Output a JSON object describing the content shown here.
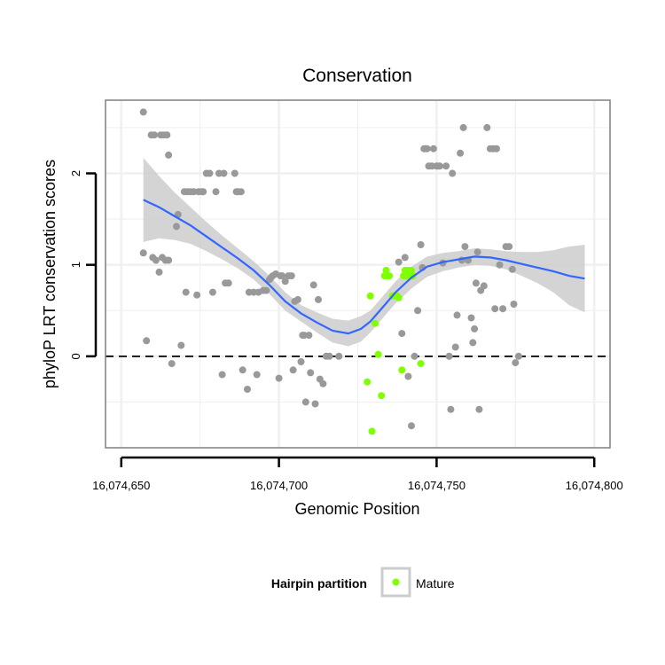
{
  "chart_data": {
    "type": "scatter",
    "title": "Conservation",
    "xlabel": "Genomic Position",
    "ylabel": "phyloP LRT conservation scores",
    "xlim": [
      16074645,
      16074805
    ],
    "ylim": [
      -1.0,
      2.8
    ],
    "x_ticks": [
      16074650,
      16074700,
      16074750,
      16074800
    ],
    "x_tick_labels": [
      "16,074,650",
      "16,074,700",
      "16,074,750",
      "16,074,800"
    ],
    "y_ticks": [
      0,
      1,
      2
    ],
    "y_tick_labels": [
      "0",
      "1",
      "2"
    ],
    "reference_line": {
      "y": 0,
      "style": "dashed"
    },
    "legend": {
      "title": "Hairpin partition",
      "entries": [
        {
          "label": "Mature",
          "color": "#7fff00"
        }
      ],
      "placement": "bottom"
    },
    "colors": {
      "other": "#999999",
      "mature": "#7fff00",
      "smooth": "#3366ff",
      "band": "#cccccc",
      "grid": "#f0f0f0",
      "border": "#7f7f7f"
    },
    "series": [
      {
        "name": "Other",
        "color": "#999999",
        "points": [
          [
            16074657.0,
            2.67
          ],
          [
            16074659.5,
            2.42
          ],
          [
            16074660.5,
            2.42
          ],
          [
            16074662.5,
            2.42
          ],
          [
            16074663.5,
            2.42
          ],
          [
            16074664.5,
            2.42
          ],
          [
            16074665.0,
            2.2
          ],
          [
            16074657.0,
            1.13
          ],
          [
            16074658.0,
            0.17
          ],
          [
            16074660.0,
            1.08
          ],
          [
            16074661.0,
            1.05
          ],
          [
            16074662.0,
            0.92
          ],
          [
            16074663.0,
            1.08
          ],
          [
            16074664.0,
            1.05
          ],
          [
            16074665.0,
            1.05
          ],
          [
            16074666.0,
            -0.08
          ],
          [
            16074667.5,
            1.42
          ],
          [
            16074668.0,
            1.55
          ],
          [
            16074669.0,
            0.12
          ],
          [
            16074670.0,
            1.8
          ],
          [
            16074670.5,
            0.7
          ],
          [
            16074671.0,
            1.8
          ],
          [
            16074672.0,
            1.8
          ],
          [
            16074673.0,
            1.8
          ],
          [
            16074674.0,
            0.67
          ],
          [
            16074674.5,
            1.8
          ],
          [
            16074675.5,
            1.8
          ],
          [
            16074676.0,
            1.8
          ],
          [
            16074677.0,
            2.0
          ],
          [
            16074678.0,
            2.0
          ],
          [
            16074679.0,
            0.7
          ],
          [
            16074680.0,
            1.8
          ],
          [
            16074681.0,
            2.0
          ],
          [
            16074682.0,
            -0.2
          ],
          [
            16074682.5,
            2.0
          ],
          [
            16074683.0,
            0.8
          ],
          [
            16074684.0,
            0.8
          ],
          [
            16074686.0,
            2.0
          ],
          [
            16074686.5,
            1.8
          ],
          [
            16074687.0,
            1.8
          ],
          [
            16074688.0,
            1.8
          ],
          [
            16074688.5,
            -0.15
          ],
          [
            16074690.0,
            -0.36
          ],
          [
            16074690.5,
            0.7
          ],
          [
            16074692.0,
            0.7
          ],
          [
            16074693.0,
            -0.2
          ],
          [
            16074693.5,
            0.7
          ],
          [
            16074695.0,
            0.72
          ],
          [
            16074696.0,
            0.72
          ],
          [
            16074697.0,
            0.84
          ],
          [
            16074697.5,
            0.86
          ],
          [
            16074698.0,
            0.88
          ],
          [
            16074699.0,
            0.9
          ],
          [
            16074700.0,
            -0.24
          ],
          [
            16074700.5,
            0.88
          ],
          [
            16074701.0,
            0.88
          ],
          [
            16074702.0,
            0.82
          ],
          [
            16074703.0,
            0.88
          ],
          [
            16074704.0,
            0.88
          ],
          [
            16074704.5,
            -0.15
          ],
          [
            16074705.0,
            0.6
          ],
          [
            16074706.0,
            0.62
          ],
          [
            16074707.0,
            -0.06
          ],
          [
            16074707.5,
            0.23
          ],
          [
            16074708.0,
            0.23
          ],
          [
            16074708.5,
            -0.5
          ],
          [
            16074709.5,
            0.23
          ],
          [
            16074710.0,
            -0.18
          ],
          [
            16074711.0,
            0.78
          ],
          [
            16074711.5,
            -0.52
          ],
          [
            16074712.5,
            0.62
          ],
          [
            16074713.0,
            -0.25
          ],
          [
            16074714.0,
            -0.3
          ],
          [
            16074715.0,
            0.0
          ],
          [
            16074716.0,
            0.0
          ],
          [
            16074719.0,
            0.0
          ],
          [
            16074738.0,
            1.03
          ],
          [
            16074739.0,
            0.25
          ],
          [
            16074740.0,
            1.08
          ],
          [
            16074741.0,
            -0.22
          ],
          [
            16074742.0,
            -0.76
          ],
          [
            16074743.0,
            0.0
          ],
          [
            16074744.0,
            0.5
          ],
          [
            16074745.0,
            1.22
          ],
          [
            16074745.5,
            0.97
          ],
          [
            16074746.0,
            2.27
          ],
          [
            16074746.5,
            2.27
          ],
          [
            16074747.0,
            2.27
          ],
          [
            16074747.5,
            2.08
          ],
          [
            16074748.5,
            2.08
          ],
          [
            16074749.0,
            2.27
          ],
          [
            16074750.0,
            2.08
          ],
          [
            16074750.5,
            2.08
          ],
          [
            16074751.0,
            2.08
          ],
          [
            16074752.0,
            1.02
          ],
          [
            16074753.0,
            2.08
          ],
          [
            16074754.0,
            0.0
          ],
          [
            16074754.5,
            -0.58
          ],
          [
            16074755.0,
            2.0
          ],
          [
            16074756.0,
            0.1
          ],
          [
            16074756.5,
            0.45
          ],
          [
            16074757.5,
            2.22
          ],
          [
            16074758.0,
            1.05
          ],
          [
            16074758.5,
            2.5
          ],
          [
            16074759.0,
            1.2
          ],
          [
            16074760.0,
            1.05
          ],
          [
            16074761.0,
            0.42
          ],
          [
            16074761.5,
            0.15
          ],
          [
            16074762.0,
            0.3
          ],
          [
            16074762.5,
            0.8
          ],
          [
            16074763.0,
            1.14
          ],
          [
            16074763.5,
            -0.58
          ],
          [
            16074764.0,
            0.72
          ],
          [
            16074765.0,
            0.77
          ],
          [
            16074766.0,
            2.5
          ],
          [
            16074767.0,
            2.27
          ],
          [
            16074768.0,
            2.27
          ],
          [
            16074768.5,
            0.52
          ],
          [
            16074769.0,
            2.27
          ],
          [
            16074770.0,
            1.0
          ],
          [
            16074771.0,
            0.52
          ],
          [
            16074772.0,
            1.2
          ],
          [
            16074773.0,
            1.2
          ],
          [
            16074774.0,
            0.95
          ],
          [
            16074774.5,
            0.57
          ],
          [
            16074775.0,
            -0.07
          ],
          [
            16074776.0,
            0.0
          ]
        ]
      },
      {
        "name": "Mature",
        "color": "#7fff00",
        "points": [
          [
            16074728.0,
            -0.28
          ],
          [
            16074729.0,
            0.66
          ],
          [
            16074729.5,
            -0.82
          ],
          [
            16074730.5,
            0.36
          ],
          [
            16074731.5,
            0.02
          ],
          [
            16074732.5,
            -0.43
          ],
          [
            16074733.5,
            0.88
          ],
          [
            16074734.0,
            0.94
          ],
          [
            16074734.5,
            0.88
          ],
          [
            16074735.0,
            0.88
          ],
          [
            16074736.0,
            0.66
          ],
          [
            16074736.5,
            0.66
          ],
          [
            16074737.5,
            0.66
          ],
          [
            16074738.0,
            0.64
          ],
          [
            16074739.0,
            -0.15
          ],
          [
            16074739.5,
            0.88
          ],
          [
            16074740.0,
            0.94
          ],
          [
            16074740.5,
            0.88
          ],
          [
            16074741.0,
            0.94
          ],
          [
            16074741.5,
            0.88
          ],
          [
            16074742.0,
            0.94
          ],
          [
            16074742.5,
            0.88
          ],
          [
            16074745.0,
            -0.08
          ]
        ]
      }
    ],
    "smooth": {
      "x": [
        16074657,
        16074662,
        16074667,
        16074672,
        16074677,
        16074682,
        16074687,
        16074692,
        16074697,
        16074702,
        16074707,
        16074712,
        16074717,
        16074722,
        16074726,
        16074729,
        16074733,
        16074737,
        16074742,
        16074747,
        16074752,
        16074757,
        16074762,
        16074767,
        16074772,
        16074777,
        16074782,
        16074787,
        16074792,
        16074797
      ],
      "y": [
        1.71,
        1.63,
        1.53,
        1.43,
        1.31,
        1.19,
        1.07,
        0.94,
        0.78,
        0.6,
        0.47,
        0.37,
        0.28,
        0.25,
        0.3,
        0.38,
        0.54,
        0.7,
        0.86,
        0.98,
        1.03,
        1.06,
        1.09,
        1.08,
        1.05,
        1.01,
        0.97,
        0.93,
        0.88,
        0.85
      ],
      "lower": [
        1.25,
        1.29,
        1.27,
        1.23,
        1.15,
        1.06,
        0.96,
        0.84,
        0.68,
        0.5,
        0.38,
        0.26,
        0.15,
        0.11,
        0.16,
        0.26,
        0.42,
        0.58,
        0.74,
        0.87,
        0.93,
        0.97,
        1.0,
        0.99,
        0.95,
        0.88,
        0.8,
        0.7,
        0.56,
        0.48
      ],
      "upper": [
        2.17,
        1.97,
        1.79,
        1.63,
        1.47,
        1.32,
        1.18,
        1.04,
        0.88,
        0.7,
        0.56,
        0.48,
        0.41,
        0.39,
        0.44,
        0.5,
        0.66,
        0.82,
        0.98,
        1.09,
        1.13,
        1.15,
        1.18,
        1.17,
        1.15,
        1.14,
        1.14,
        1.16,
        1.2,
        1.22
      ]
    }
  }
}
